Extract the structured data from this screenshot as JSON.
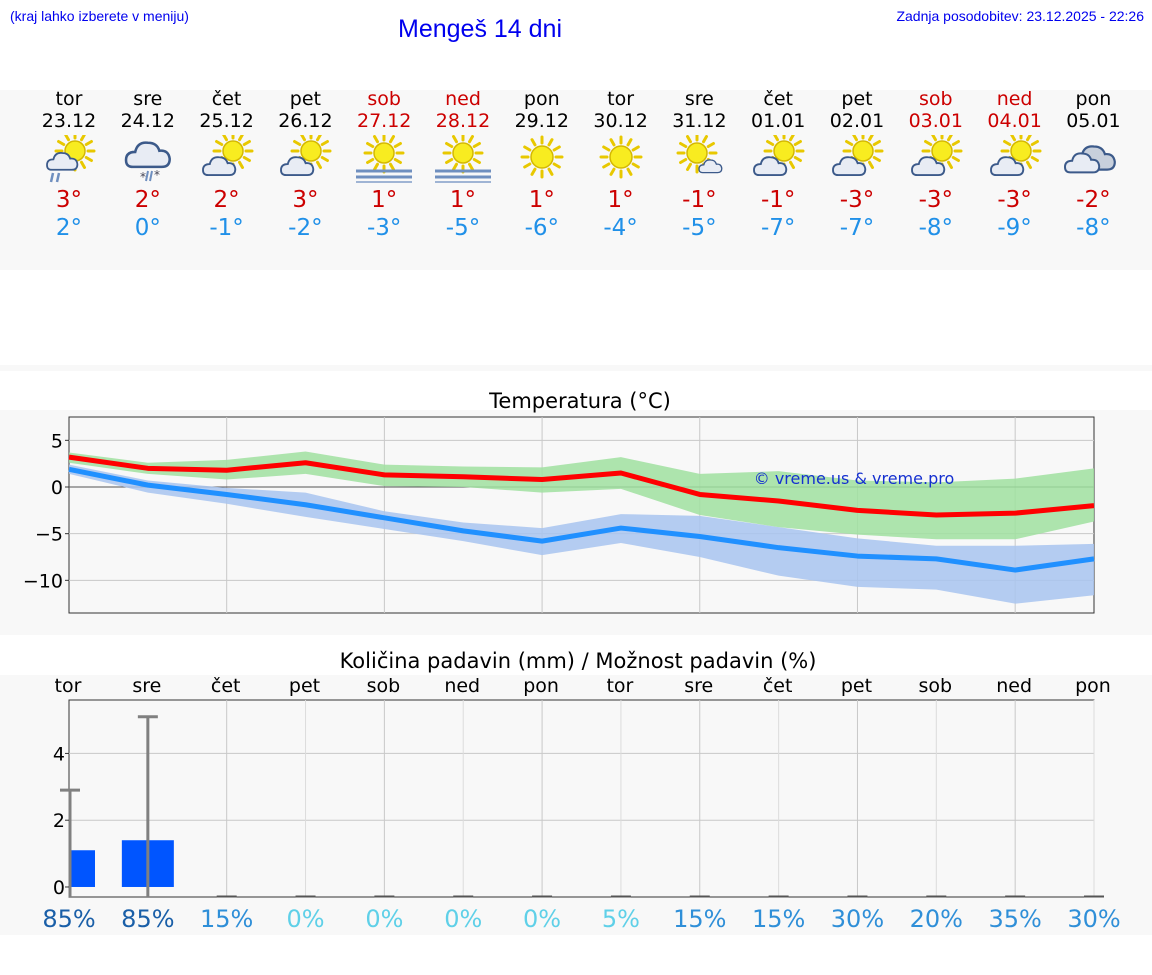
{
  "header": {
    "note": "(kraj lahko izberete v meniju)",
    "title": "Mengeš 14 dni",
    "updated": "Zadnja posodobitev: 23.12.2025 - 22:26"
  },
  "days": [
    {
      "name": "tor",
      "date": "23.12",
      "weekend": false,
      "icon": "sun-cloud-rain-icon",
      "tmax": "3°",
      "tmin": "2°"
    },
    {
      "name": "sre",
      "date": "24.12",
      "weekend": false,
      "icon": "cloud-sleet-icon",
      "tmax": "2°",
      "tmin": "0°"
    },
    {
      "name": "čet",
      "date": "25.12",
      "weekend": false,
      "icon": "sun-cloud-icon",
      "tmax": "2°",
      "tmin": "-1°"
    },
    {
      "name": "pet",
      "date": "26.12",
      "weekend": false,
      "icon": "sun-cloud-icon",
      "tmax": "3°",
      "tmin": "-2°"
    },
    {
      "name": "sob",
      "date": "27.12",
      "weekend": true,
      "icon": "sun-fog-icon",
      "tmax": "1°",
      "tmin": "-3°"
    },
    {
      "name": "ned",
      "date": "28.12",
      "weekend": true,
      "icon": "sun-fog-icon",
      "tmax": "1°",
      "tmin": "-5°"
    },
    {
      "name": "pon",
      "date": "29.12",
      "weekend": false,
      "icon": "sun-icon",
      "tmax": "1°",
      "tmin": "-6°"
    },
    {
      "name": "tor",
      "date": "30.12",
      "weekend": false,
      "icon": "sun-icon",
      "tmax": "1°",
      "tmin": "-4°"
    },
    {
      "name": "sre",
      "date": "31.12",
      "weekend": false,
      "icon": "sun-small-cloud-icon",
      "tmax": "-1°",
      "tmin": "-5°"
    },
    {
      "name": "čet",
      "date": "01.01",
      "weekend": false,
      "icon": "sun-cloud-icon",
      "tmax": "-1°",
      "tmin": "-7°"
    },
    {
      "name": "pet",
      "date": "02.01",
      "weekend": false,
      "icon": "sun-cloud-icon",
      "tmax": "-3°",
      "tmin": "-7°"
    },
    {
      "name": "sob",
      "date": "03.01",
      "weekend": true,
      "icon": "sun-cloud-icon",
      "tmax": "-3°",
      "tmin": "-8°"
    },
    {
      "name": "ned",
      "date": "04.01",
      "weekend": true,
      "icon": "sun-cloud-icon",
      "tmax": "-3°",
      "tmin": "-9°"
    },
    {
      "name": "pon",
      "date": "05.01",
      "weekend": false,
      "icon": "cloudy-icon",
      "tmax": "-2°",
      "tmin": "-8°"
    }
  ],
  "chart_data": [
    {
      "type": "line",
      "title": "Temperatura (°C)",
      "watermark": "© vreme.us & vreme.pro",
      "x": [
        0,
        1,
        2,
        3,
        4,
        5,
        6,
        7,
        8,
        9,
        10,
        11,
        12,
        13
      ],
      "ylim": [
        -13.5,
        7.5
      ],
      "yticks": [
        5,
        0,
        -5,
        -10
      ],
      "ytick_labels": [
        "5",
        "0",
        "−5",
        "−10"
      ],
      "grid": true,
      "series": [
        {
          "name": "max",
          "color": "#ff0000",
          "values": [
            3.2,
            2.0,
            1.8,
            2.6,
            1.3,
            1.1,
            0.8,
            1.5,
            -0.8,
            -1.5,
            -2.5,
            -3.0,
            -2.8,
            -2.0
          ]
        },
        {
          "name": "max_range",
          "color": "#a0e0a0",
          "upper": [
            3.7,
            2.6,
            2.9,
            3.8,
            2.4,
            2.2,
            2.1,
            3.2,
            1.4,
            1.7,
            0.7,
            0.5,
            0.9,
            2.0
          ],
          "lower": [
            2.6,
            1.4,
            0.8,
            1.4,
            0.1,
            0.0,
            -0.6,
            -0.2,
            -3.0,
            -4.3,
            -5.1,
            -5.6,
            -5.6,
            -3.7
          ]
        },
        {
          "name": "min",
          "color": "#2090ff",
          "values": [
            1.9,
            0.2,
            -0.8,
            -1.9,
            -3.3,
            -4.7,
            -5.8,
            -4.4,
            -5.3,
            -6.5,
            -7.4,
            -7.7,
            -8.9,
            -7.7
          ]
        },
        {
          "name": "min_range",
          "color": "#a8c4f0",
          "upper": [
            2.4,
            0.7,
            -0.1,
            -0.6,
            -2.6,
            -3.8,
            -4.4,
            -2.9,
            -3.1,
            -4.3,
            -5.5,
            -6.3,
            -6.3,
            -6.1
          ],
          "lower": [
            1.4,
            -0.6,
            -1.8,
            -3.2,
            -4.5,
            -5.8,
            -7.3,
            -6.0,
            -7.5,
            -9.5,
            -10.7,
            -11.0,
            -12.5,
            -11.6
          ]
        }
      ]
    },
    {
      "type": "bar",
      "title": "Količina padavin (mm) / Možnost padavin (%)",
      "categories": [
        "tor",
        "sre",
        "čet",
        "pet",
        "sob",
        "ned",
        "pon",
        "tor",
        "sre",
        "čet",
        "pet",
        "sob",
        "ned",
        "pon"
      ],
      "values": [
        1.1,
        1.4,
        0,
        0,
        0,
        0,
        0,
        0,
        0,
        0,
        0,
        0,
        0,
        0
      ],
      "error_upper": [
        2.9,
        5.1,
        0,
        0,
        0,
        0,
        0,
        0,
        0,
        0,
        0,
        0,
        0,
        0
      ],
      "probability": [
        "85%",
        "85%",
        "15%",
        "0%",
        "0%",
        "0%",
        "0%",
        "5%",
        "15%",
        "15%",
        "30%",
        "20%",
        "35%",
        "30%"
      ],
      "probability_colors": [
        "#1a5fa8",
        "#1a5fa8",
        "#2f8fd8",
        "#5fd0e8",
        "#5fd0e8",
        "#5fd0e8",
        "#5fd0e8",
        "#5fd0e8",
        "#2f8fd8",
        "#2f8fd8",
        "#2f8fd8",
        "#2f8fd8",
        "#2f8fd8",
        "#2f8fd8"
      ],
      "ylim": [
        -0.3,
        5.6
      ],
      "yticks": [
        4,
        2,
        0
      ],
      "ytick_labels": [
        "4",
        "2",
        "0"
      ],
      "grid": true
    }
  ]
}
